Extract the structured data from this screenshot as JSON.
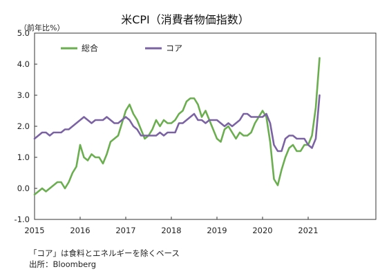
{
  "chart_data": {
    "type": "line",
    "title": "米CPI（消費者物価指数）",
    "unit_label": "（前年比%）",
    "xlabel": "",
    "ylabel": "",
    "ylim": [
      -1.0,
      5.0
    ],
    "y_ticks": [
      "5.0",
      "4.0",
      "3.0",
      "2.0",
      "1.0",
      "0.0",
      "-1.0"
    ],
    "x_ticks": [
      "2015",
      "2016",
      "2017",
      "2018",
      "2019",
      "2020",
      "2021"
    ],
    "grid": false,
    "legend_position": "top-left",
    "x_start_year": 2015,
    "series": [
      {
        "name": "総合",
        "color": "#6aae4f",
        "values": [
          -0.2,
          -0.1,
          -0.0,
          -0.1,
          0.0,
          0.1,
          0.2,
          0.2,
          0.0,
          0.2,
          0.5,
          0.7,
          1.4,
          1.0,
          0.9,
          1.1,
          1.0,
          1.0,
          0.8,
          1.1,
          1.5,
          1.6,
          1.7,
          2.1,
          2.5,
          2.7,
          2.4,
          2.2,
          1.9,
          1.6,
          1.7,
          1.9,
          2.2,
          2.0,
          2.2,
          2.1,
          2.1,
          2.2,
          2.4,
          2.5,
          2.8,
          2.9,
          2.9,
          2.7,
          2.3,
          2.5,
          2.2,
          1.9,
          1.6,
          1.5,
          1.9,
          2.0,
          1.8,
          1.6,
          1.8,
          1.7,
          1.7,
          1.8,
          2.1,
          2.3,
          2.5,
          2.3,
          1.5,
          0.3,
          0.1,
          0.6,
          1.0,
          1.3,
          1.4,
          1.2,
          1.2,
          1.4,
          1.4,
          1.7,
          2.6,
          4.2
        ]
      },
      {
        "name": "コア",
        "color": "#7a62a3",
        "values": [
          1.6,
          1.7,
          1.8,
          1.8,
          1.7,
          1.8,
          1.8,
          1.8,
          1.9,
          1.9,
          2.0,
          2.1,
          2.2,
          2.3,
          2.2,
          2.1,
          2.2,
          2.2,
          2.2,
          2.3,
          2.2,
          2.1,
          2.1,
          2.2,
          2.3,
          2.2,
          2.0,
          1.9,
          1.7,
          1.7,
          1.7,
          1.7,
          1.7,
          1.8,
          1.7,
          1.8,
          1.8,
          1.8,
          2.1,
          2.1,
          2.2,
          2.3,
          2.4,
          2.2,
          2.2,
          2.1,
          2.2,
          2.2,
          2.2,
          2.1,
          2.0,
          2.1,
          2.0,
          2.1,
          2.2,
          2.4,
          2.4,
          2.3,
          2.3,
          2.3,
          2.3,
          2.4,
          2.1,
          1.4,
          1.2,
          1.2,
          1.6,
          1.7,
          1.7,
          1.6,
          1.6,
          1.6,
          1.4,
          1.3,
          1.6,
          3.0
        ]
      }
    ]
  },
  "notes": {
    "definition": "「コア」は食料とエネルギーを除くベース",
    "source": "出所：Bloomberg"
  }
}
